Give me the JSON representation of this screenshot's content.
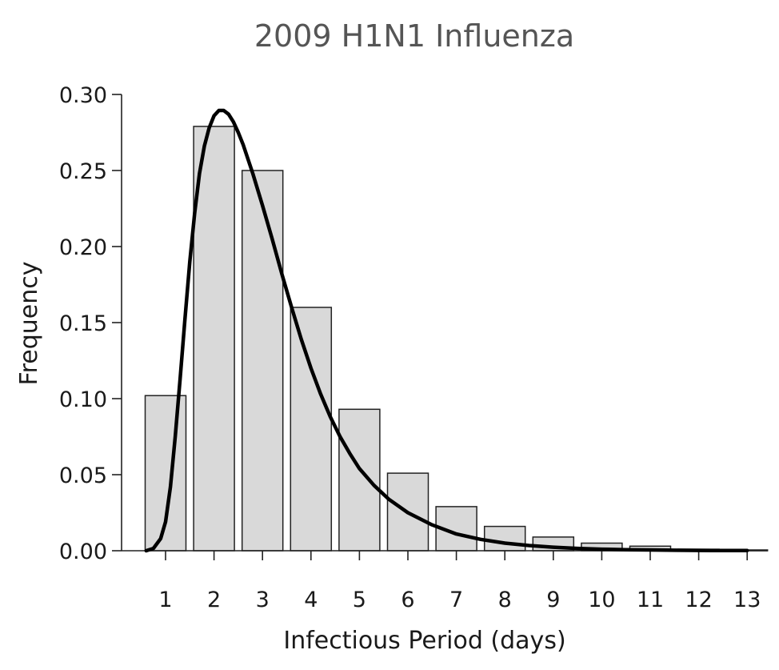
{
  "chart_data": {
    "type": "bar",
    "title": "2009 H1N1 Influenza",
    "xlabel": "Infectious Period (days)",
    "ylabel": "Frequency",
    "categories": [
      "1",
      "2",
      "3",
      "4",
      "5",
      "6",
      "7",
      "8",
      "9",
      "10",
      "11",
      "12",
      "13"
    ],
    "x": [
      1,
      2,
      3,
      4,
      5,
      6,
      7,
      8,
      9,
      10,
      11,
      12,
      13
    ],
    "values": [
      0.102,
      0.279,
      0.25,
      0.16,
      0.093,
      0.051,
      0.029,
      0.016,
      0.009,
      0.005,
      0.003,
      0.001,
      0.0005
    ],
    "ylim": [
      0,
      0.3
    ],
    "xlim": [
      0.5,
      13.5
    ],
    "yticks": [
      "0.00",
      "0.05",
      "0.10",
      "0.15",
      "0.20",
      "0.25",
      "0.30"
    ],
    "ytick_values": [
      0,
      0.05,
      0.1,
      0.15,
      0.2,
      0.25,
      0.3
    ],
    "fit_curve": {
      "type": "line",
      "x": [
        0.6,
        0.75,
        0.9,
        1.0,
        1.1,
        1.2,
        1.3,
        1.4,
        1.5,
        1.6,
        1.7,
        1.8,
        1.9,
        2.0,
        2.1,
        2.2,
        2.3,
        2.4,
        2.5,
        2.6,
        2.8,
        3.0,
        3.2,
        3.4,
        3.6,
        3.8,
        4.0,
        4.2,
        4.4,
        4.6,
        4.8,
        5.0,
        5.3,
        5.6,
        6.0,
        6.5,
        7.0,
        7.5,
        8.0,
        8.5,
        9.0,
        9.5,
        10.0,
        10.5,
        11.0,
        11.5,
        12.0,
        12.5,
        13.0
      ],
      "y": [
        0.0,
        0.0015,
        0.008,
        0.019,
        0.042,
        0.075,
        0.113,
        0.152,
        0.19,
        0.222,
        0.248,
        0.266,
        0.278,
        0.286,
        0.2895,
        0.2895,
        0.287,
        0.282,
        0.275,
        0.267,
        0.248,
        0.227,
        0.205,
        0.182,
        0.16,
        0.139,
        0.12,
        0.103,
        0.088,
        0.075,
        0.064,
        0.054,
        0.043,
        0.034,
        0.025,
        0.017,
        0.011,
        0.0075,
        0.005,
        0.0034,
        0.0023,
        0.0015,
        0.001,
        0.0007,
        0.0005,
        0.0003,
        0.0002,
        0.0001,
        0.0001
      ]
    },
    "grid": false,
    "legend": "none"
  }
}
